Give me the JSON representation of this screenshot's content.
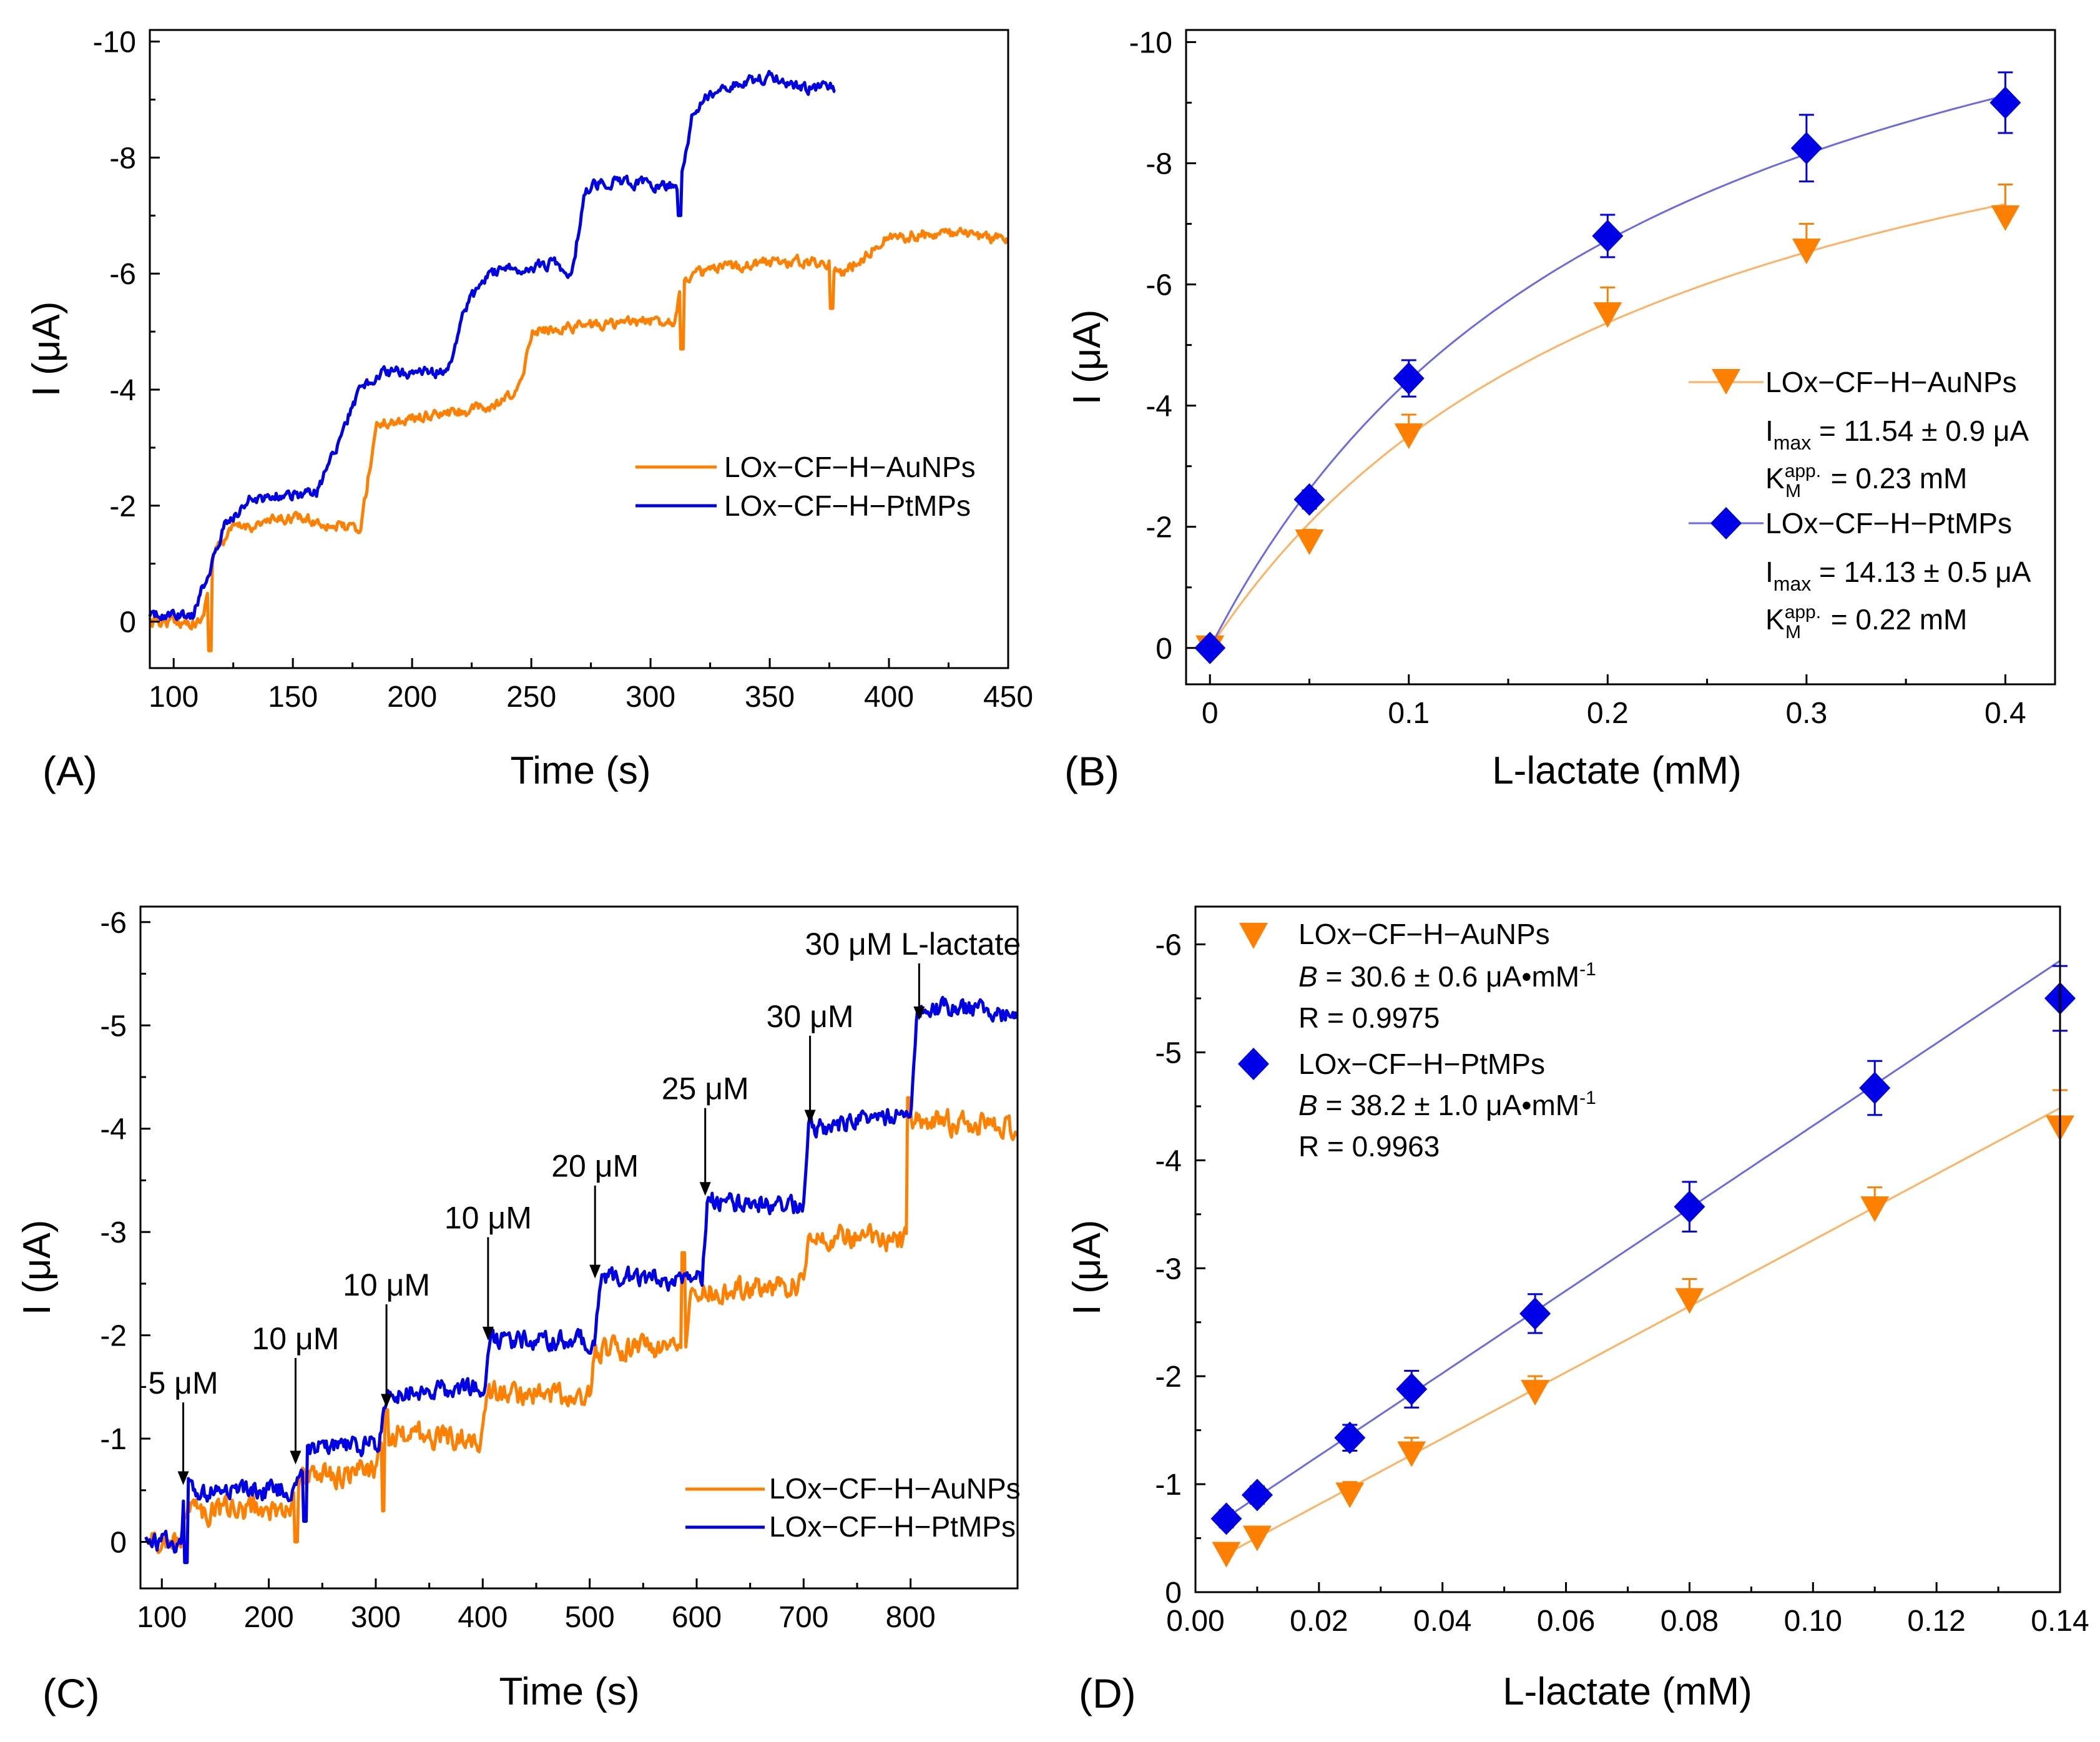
{
  "colors": {
    "orange": "#FF8000",
    "blue": "#0000E6",
    "fit_orange": "#FFB060",
    "fit_blue": "#6A6AE6"
  },
  "chart_data": [
    {
      "type": "line",
      "panel_label": "(A)",
      "xlabel": "Time (s)",
      "ylabel": "I (μA)",
      "xlim": [
        90,
        450
      ],
      "ylim": [
        0.8,
        -10.2
      ],
      "xticks": [
        100,
        150,
        200,
        250,
        300,
        350,
        400,
        450
      ],
      "yticks": [
        0,
        -2,
        -4,
        -6,
        -8,
        -10
      ],
      "legend": [
        "LOx−CF−H−AuNPs",
        "LOx−CF−H−PtMPs"
      ],
      "series": [
        {
          "name": "LOx−CF−H−AuNPs",
          "color": "orange",
          "noise": 0.1,
          "spikes": [
            [
              115,
              0.5
            ],
            [
              313,
              -4.7
            ],
            [
              376,
              -5.4
            ]
          ],
          "steps": [
            [
              90,
              0.0
            ],
            [
              112,
              0.0
            ],
            [
              117,
              -1.2
            ],
            [
              125,
              -1.6
            ],
            [
              150,
              -1.8
            ],
            [
              175,
              -1.6
            ],
            [
              178,
              -1.5
            ],
            [
              185,
              -3.4
            ],
            [
              200,
              -3.5
            ],
            [
              235,
              -3.7
            ],
            [
              245,
              -4.0
            ],
            [
              250,
              -5.0
            ],
            [
              270,
              -5.1
            ],
            [
              310,
              -5.2
            ],
            [
              313,
              -5.9
            ],
            [
              320,
              -6.0
            ],
            [
              345,
              -6.2
            ],
            [
              375,
              -6.2
            ],
            [
              380,
              -6.0
            ],
            [
              390,
              -6.3
            ],
            [
              397,
              -6.6
            ],
            [
              420,
              -6.7
            ],
            [
              450,
              -6.6
            ]
          ]
        },
        {
          "name": "LOx−CF−H−PtMPs",
          "color": "blue",
          "noise": 0.1,
          "spikes": [
            [
              312,
              -7.0
            ]
          ],
          "steps": [
            [
              90,
              -0.1
            ],
            [
              108,
              -0.1
            ],
            [
              115,
              -0.9
            ],
            [
              122,
              -1.7
            ],
            [
              132,
              -2.1
            ],
            [
              150,
              -2.2
            ],
            [
              160,
              -2.2
            ],
            [
              168,
              -3.0
            ],
            [
              178,
              -4.0
            ],
            [
              188,
              -4.3
            ],
            [
              215,
              -4.3
            ],
            [
              222,
              -5.4
            ],
            [
              232,
              -6.0
            ],
            [
              260,
              -6.2
            ],
            [
              265,
              -6.0
            ],
            [
              268,
              -6.2
            ],
            [
              272,
              -7.4
            ],
            [
              280,
              -7.6
            ],
            [
              312,
              -7.5
            ],
            [
              318,
              -8.8
            ],
            [
              328,
              -9.2
            ],
            [
              350,
              -9.4
            ],
            [
              365,
              -9.2
            ],
            [
              378,
              -9.2
            ]
          ]
        }
      ]
    },
    {
      "type": "scatter",
      "panel_label": "(B)",
      "xlabel": "L-lactate (mM)",
      "ylabel": "I (μA)",
      "xlim": [
        -0.012,
        0.425
      ],
      "ylim": [
        0.6,
        -10.2
      ],
      "xticks": [
        0.0,
        0.1,
        0.2,
        0.3,
        0.4
      ],
      "yticks": [
        0,
        -2,
        -4,
        -6,
        -8,
        -10
      ],
      "series": [
        {
          "name": "LOx−CF−H−AuNPs",
          "color": "orange",
          "marker": "triangle-down",
          "x": [
            0,
            0.05,
            0.1,
            0.2,
            0.3,
            0.4
          ],
          "y": [
            0,
            -1.75,
            -3.5,
            -5.5,
            -6.55,
            -7.1
          ],
          "err": [
            0.1,
            0.2,
            0.35,
            0.45,
            0.45,
            0.55
          ],
          "fit": {
            "imax": -11.54,
            "km": 0.23
          }
        },
        {
          "name": "LOx−CF−H−PtMPs",
          "color": "blue",
          "marker": "diamond",
          "x": [
            0,
            0.05,
            0.1,
            0.2,
            0.3,
            0.4
          ],
          "y": [
            0,
            -2.45,
            -4.45,
            -6.8,
            -8.25,
            -9.0
          ],
          "err": [
            0.1,
            0.15,
            0.3,
            0.35,
            0.55,
            0.5
          ],
          "fit": {
            "imax": -14.13,
            "km": 0.22
          }
        }
      ],
      "legend_blocks": [
        {
          "name": "LOx−CF−H−AuNPs",
          "imax_label": "I",
          "imax_sub": "max",
          "imax_value": " = 11.54 ± 0.9 μA",
          "km_label": "K",
          "km_sub": "M",
          "km_sup": "app.",
          "km_value": " = 0.23 mM"
        },
        {
          "name": "LOx−CF−H−PtMPs",
          "imax_label": "I",
          "imax_sub": "max",
          "imax_value": " = 14.13 ± 0.5 μA",
          "km_label": "K",
          "km_sub": "M",
          "km_sup": "app.",
          "km_value": " = 0.22 mM"
        }
      ]
    },
    {
      "type": "line",
      "panel_label": "(C)",
      "xlabel": "Time (s)",
      "ylabel": "I (μA)",
      "xlim": [
        80,
        900
      ],
      "ylim": [
        0.45,
        -6.15
      ],
      "xticks": [
        100,
        200,
        300,
        400,
        500,
        600,
        700,
        800
      ],
      "yticks": [
        0,
        -1,
        -2,
        -3,
        -4,
        -5,
        -6
      ],
      "legend": [
        "LOx−CF−H−AuNPs",
        "LOx−CF−H−PtMPs"
      ],
      "annotations": [
        {
          "text": "5 μM",
          "x": 120,
          "y_text": -1.35,
          "y_tip": -0.55
        },
        {
          "text": "10 μM",
          "x": 225,
          "y_text": -1.78,
          "y_tip": -0.75
        },
        {
          "text": "10 μM",
          "x": 310,
          "y_text": -2.3,
          "y_tip": -1.3
        },
        {
          "text": "10 μM",
          "x": 405,
          "y_text": -2.95,
          "y_tip": -1.95
        },
        {
          "text": "20 μM",
          "x": 505,
          "y_text": -3.45,
          "y_tip": -2.55
        },
        {
          "text": "25 μM",
          "x": 608,
          "y_text": -4.2,
          "y_tip": -3.35
        },
        {
          "text": "30 μM",
          "x": 706,
          "y_text": -4.9,
          "y_tip": -4.05
        },
        {
          "text": "30 μM L-lactate",
          "x": 808,
          "y_text": -5.6,
          "y_tip": -5.05
        }
      ],
      "series": [
        {
          "name": "LOx−CF−H−AuNPs",
          "color": "orange",
          "noise": 0.12,
          "spikes": [
            [
              225,
              0.0
            ],
            [
              308,
              -0.3
            ],
            [
              310,
              -1.28
            ],
            [
              588,
              -2.8
            ],
            [
              798,
              -4.3
            ]
          ],
          "steps": [
            [
              85,
              0.0
            ],
            [
              118,
              0.0
            ],
            [
              120,
              -0.3
            ],
            [
              220,
              -0.3
            ],
            [
              224,
              -0.6
            ],
            [
              300,
              -0.7
            ],
            [
              304,
              -1.05
            ],
            [
              400,
              -1.0
            ],
            [
              404,
              -1.45
            ],
            [
              500,
              -1.4
            ],
            [
              504,
              -1.85
            ],
            [
              590,
              -1.9
            ],
            [
              594,
              -2.4
            ],
            [
              700,
              -2.5
            ],
            [
              704,
              -3.0
            ],
            [
              796,
              -2.9
            ],
            [
              800,
              -4.1
            ],
            [
              900,
              -4.0
            ]
          ]
        },
        {
          "name": "LOx−CF−H−PtMPs",
          "color": "blue",
          "noise": 0.1,
          "spikes": [
            [
              122,
              0.2
            ],
            [
              234,
              -0.2
            ]
          ],
          "steps": [
            [
              85,
              0.0
            ],
            [
              118,
              0.0
            ],
            [
              121,
              -0.48
            ],
            [
              218,
              -0.5
            ],
            [
              228,
              -0.58
            ],
            [
              236,
              -0.9
            ],
            [
              302,
              -0.95
            ],
            [
              312,
              -1.45
            ],
            [
              402,
              -1.5
            ],
            [
              408,
              -1.95
            ],
            [
              505,
              -1.95
            ],
            [
              510,
              -2.55
            ],
            [
              605,
              -2.55
            ],
            [
              610,
              -3.3
            ],
            [
              620,
              -3.3
            ],
            [
              700,
              -3.25
            ],
            [
              705,
              -4.0
            ],
            [
              800,
              -4.15
            ],
            [
              806,
              -5.2
            ],
            [
              900,
              -5.1
            ]
          ]
        }
      ]
    },
    {
      "type": "scatter",
      "panel_label": "(D)",
      "xlabel": "L-lactate (mM)",
      "ylabel": "I (μA)",
      "xlim": [
        0.0,
        0.14
      ],
      "ylim": [
        0.0,
        -6.35
      ],
      "xticks": [
        0.0,
        0.02,
        0.04,
        0.06,
        0.08,
        0.1,
        0.12,
        0.14
      ],
      "xtick_labels": [
        "0.00",
        "0.02",
        "0.04",
        "0.06",
        "0.08",
        "0.10",
        "0.12",
        "0.14"
      ],
      "yticks": [
        0,
        -1,
        -2,
        -3,
        -4,
        -5,
        -6
      ],
      "series": [
        {
          "name": "LOx−CF−H−AuNPs",
          "color": "orange",
          "marker": "triangle-down",
          "x": [
            0.005,
            0.01,
            0.025,
            0.035,
            0.055,
            0.08,
            0.11,
            0.14
          ],
          "y": [
            -0.35,
            -0.5,
            -0.9,
            -1.28,
            -1.85,
            -2.7,
            -3.55,
            -4.3
          ],
          "err": [
            0.1,
            0.1,
            0.12,
            0.15,
            0.15,
            0.2,
            0.2,
            0.35
          ],
          "fit": {
            "slope": -30.6,
            "intercept": -0.2
          }
        },
        {
          "name": "LOx−CF−H−PtMPs",
          "color": "blue",
          "marker": "diamond",
          "x": [
            0.005,
            0.01,
            0.025,
            0.035,
            0.055,
            0.08,
            0.11,
            0.14
          ],
          "y": [
            -0.68,
            -0.9,
            -1.43,
            -1.88,
            -2.58,
            -3.57,
            -4.67,
            -5.5
          ],
          "err": [
            0.08,
            0.08,
            0.12,
            0.17,
            0.18,
            0.23,
            0.25,
            0.3
          ],
          "fit": {
            "slope": -38.2,
            "intercept": -0.5
          }
        }
      ],
      "legend_blocks": [
        {
          "name": "LOx−CF−H−AuNPs",
          "b_label": "B",
          "b_value": " = 30.6 ± 0.6 μA•mM",
          "b_sup": "-1",
          "r_text": "R = 0.9975"
        },
        {
          "name": "LOx−CF−H−PtMPs",
          "b_label": "B",
          "b_value": " = 38.2 ± 1.0 μA•mM",
          "b_sup": "-1",
          "r_text": "R = 0.9963"
        }
      ]
    }
  ]
}
